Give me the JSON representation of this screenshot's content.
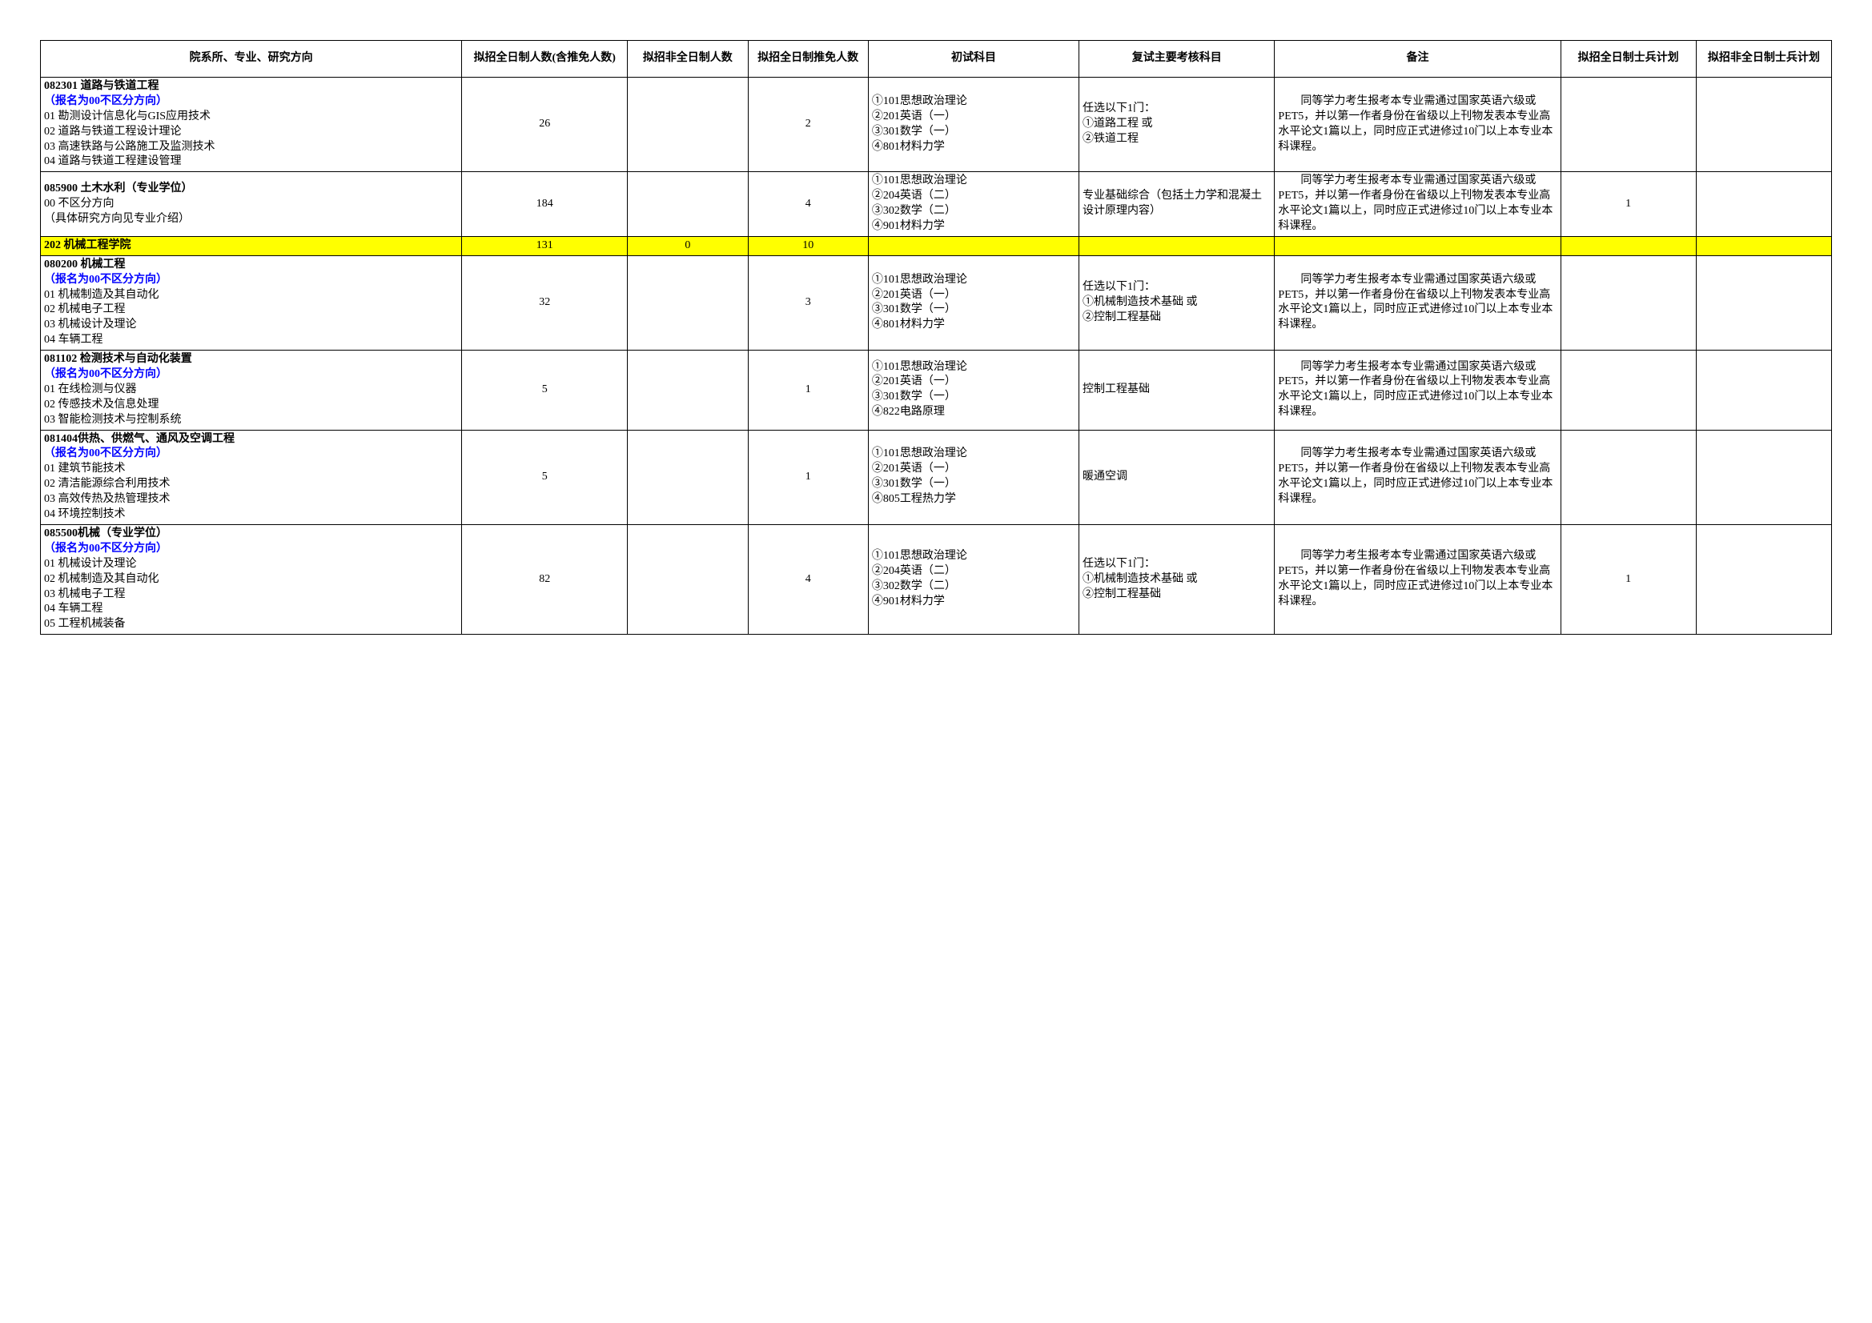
{
  "headers": {
    "direction": "院系所、专业、研究方向",
    "fulltime": "拟招全日制人数(含推免人数)",
    "parttime": "拟招非全日制人数",
    "recommend": "拟招全日制推免人数",
    "exam": "初试科目",
    "reexam": "复试主要考核科目",
    "note": "备注",
    "soldier1": "拟招全日制士兵计划",
    "soldier2": "拟招非全日制士兵计划"
  },
  "styling": {
    "highlight_bg": "#ffff00",
    "blue_text": "#0000ff",
    "border_color": "#000000",
    "page_bg": "#ffffff",
    "font_family": "SimSun",
    "body_fontsize": 14,
    "header_fontsize": 14
  },
  "rows": [
    {
      "type": "data",
      "major_code": "082301 道路与铁道工程",
      "blue_note": "（报名为00不区分方向）",
      "subs": [
        "01 勘测设计信息化与GIS应用技术",
        "02 道路与铁道工程设计理论",
        "03 高速铁路与公路施工及监测技术",
        "04 道路与铁道工程建设管理"
      ],
      "fulltime": "26",
      "parttime": "",
      "recommend": "2",
      "exam": "①101思想政治理论\n②201英语（一）\n③301数学（一）\n④801材料力学",
      "reexam": "任选以下1门：\n①道路工程 或\n②铁道工程",
      "note_first": "　　同等学力考生报考本专业需",
      "note_rest": "通过国家英语六级或PET5，并以第一作者身份在省级以上刊物发表本专业高水平论文1篇以上，同时应正式进修过10门以上本专业本科课程。",
      "sold1": "",
      "sold2": ""
    },
    {
      "type": "data",
      "major_code": "085900 土木水利（专业学位）",
      "blue_note": "",
      "subs": [
        "00 不区分方向",
        "（具体研究方向见专业介绍）"
      ],
      "fulltime": "184",
      "parttime": "",
      "recommend": "4",
      "exam": "①101思想政治理论\n②204英语（二）\n③302数学（二）\n④901材料力学",
      "reexam": "专业基础综合（包括土力学和混凝土设计原理内容）",
      "note_first": "　　同等学力考生报考本专业需",
      "note_rest": "通过国家英语六级或PET5，并以第一作者身份在省级以上刊物发表本专业高水平论文1篇以上，同时应正式进修过10门以上本专业本科课程。",
      "sold1": "1",
      "sold2": ""
    },
    {
      "type": "dept",
      "dept_name": "202 机械工程学院",
      "fulltime": "131",
      "parttime": "0",
      "recommend": "10"
    },
    {
      "type": "data",
      "major_code": "080200 机械工程",
      "blue_note": "（报名为00不区分方向）",
      "subs": [
        "01 机械制造及其自动化",
        "02 机械电子工程",
        "03 机械设计及理论",
        "04 车辆工程"
      ],
      "fulltime": "32",
      "parttime": "",
      "recommend": "3",
      "exam": "①101思想政治理论\n②201英语（一）\n③301数学（一）\n④801材料力学",
      "reexam": "任选以下1门：\n①机械制造技术基础 或\n②控制工程基础",
      "note_first": "　　同等学力考生报考本专业需",
      "note_rest": "通过国家英语六级或PET5，并以第一作者身份在省级以上刊物发表本专业高水平论文1篇以上，同时应正式进修过10门以上本专业本科课程。",
      "sold1": "",
      "sold2": ""
    },
    {
      "type": "data",
      "major_code": "081102 检测技术与自动化装置",
      "blue_note": "（报名为00不区分方向）",
      "subs": [
        "01 在线检测与仪器",
        "02 传感技术及信息处理",
        "03 智能检测技术与控制系统"
      ],
      "fulltime": "5",
      "parttime": "",
      "recommend": "1",
      "exam": "①101思想政治理论\n②201英语（一）\n③301数学（一）\n④822电路原理",
      "reexam": "控制工程基础",
      "note_first": "　　同等学力考生报考本专业需",
      "note_rest": "通过国家英语六级或PET5，并以第一作者身份在省级以上刊物发表本专业高水平论文1篇以上，同时应正式进修过10门以上本专业本科课程。",
      "sold1": "",
      "sold2": ""
    },
    {
      "type": "data",
      "major_code": "081404供热、供燃气、通风及空调工程",
      "blue_note": "（报名为00不区分方向）",
      "subs": [
        "01 建筑节能技术",
        "02 清洁能源综合利用技术",
        "03 高效传热及热管理技术",
        "04 环境控制技术"
      ],
      "fulltime": "5",
      "parttime": "",
      "recommend": "1",
      "exam": "①101思想政治理论\n②201英语（一）\n③301数学（一）\n④805工程热力学",
      "reexam": "暖通空调",
      "note_first": "　　同等学力考生报考本专业需",
      "note_rest": "通过国家英语六级或PET5，并以第一作者身份在省级以上刊物发表本专业高水平论文1篇以上，同时应正式进修过10门以上本专业本科课程。",
      "sold1": "",
      "sold2": ""
    },
    {
      "type": "data",
      "major_code": "085500机械（专业学位）",
      "blue_note": "（报名为00不区分方向）",
      "subs": [
        "01 机械设计及理论",
        "02 机械制造及其自动化",
        "03 机械电子工程",
        "04 车辆工程",
        "05 工程机械装备"
      ],
      "fulltime": "82",
      "parttime": "",
      "recommend": "4",
      "exam": "①101思想政治理论\n②204英语（二）\n③302数学（二）\n④901材料力学",
      "reexam": "任选以下1门：\n①机械制造技术基础 或\n②控制工程基础",
      "note_first": "　　同等学力考生报考本专业需",
      "note_rest": "通过国家英语六级或PET5，并以第一作者身份在省级以上刊物发表本专业高水平论文1篇以上，同时应正式进修过10门以上本专业本科课程。",
      "sold1": "1",
      "sold2": ""
    }
  ]
}
